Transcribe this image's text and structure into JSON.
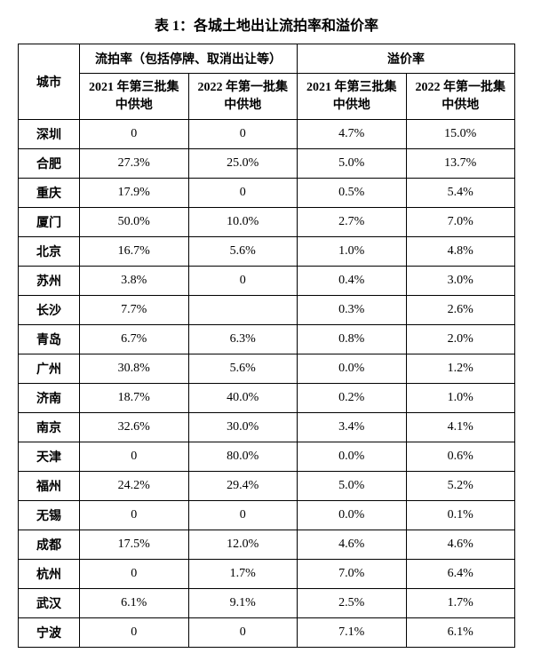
{
  "title": "表 1：各城土地出让流拍率和溢价率",
  "headers": {
    "city": "城市",
    "group1": "流拍率（包括停牌、取消出让等）",
    "group2": "溢价率",
    "sub1": "2021 年第三批集中供地",
    "sub2": "2022 年第一批集中供地",
    "sub3": "2021 年第三批集中供地",
    "sub4": "2022 年第一批集中供地"
  },
  "rows": [
    {
      "city": "深圳",
      "c1": "0",
      "c2": "0",
      "c3": "4.7%",
      "c4": "15.0%"
    },
    {
      "city": "合肥",
      "c1": "27.3%",
      "c2": "25.0%",
      "c3": "5.0%",
      "c4": "13.7%"
    },
    {
      "city": "重庆",
      "c1": "17.9%",
      "c2": "0",
      "c3": "0.5%",
      "c4": "5.4%"
    },
    {
      "city": "厦门",
      "c1": "50.0%",
      "c2": "10.0%",
      "c3": "2.7%",
      "c4": "7.0%"
    },
    {
      "city": "北京",
      "c1": "16.7%",
      "c2": "5.6%",
      "c3": "1.0%",
      "c4": "4.8%"
    },
    {
      "city": "苏州",
      "c1": "3.8%",
      "c2": "0",
      "c3": "0.4%",
      "c4": "3.0%"
    },
    {
      "city": "长沙",
      "c1": "7.7%",
      "c2": "",
      "c3": "0.3%",
      "c4": "2.6%"
    },
    {
      "city": "青岛",
      "c1": "6.7%",
      "c2": "6.3%",
      "c3": "0.8%",
      "c4": "2.0%"
    },
    {
      "city": "广州",
      "c1": "30.8%",
      "c2": "5.6%",
      "c3": "0.0%",
      "c4": "1.2%"
    },
    {
      "city": "济南",
      "c1": "18.7%",
      "c2": "40.0%",
      "c3": "0.2%",
      "c4": "1.0%"
    },
    {
      "city": "南京",
      "c1": "32.6%",
      "c2": "30.0%",
      "c3": "3.4%",
      "c4": "4.1%"
    },
    {
      "city": "天津",
      "c1": "0",
      "c2": "80.0%",
      "c3": "0.0%",
      "c4": "0.6%"
    },
    {
      "city": "福州",
      "c1": "24.2%",
      "c2": "29.4%",
      "c3": "5.0%",
      "c4": "5.2%"
    },
    {
      "city": "无锡",
      "c1": "0",
      "c2": "0",
      "c3": "0.0%",
      "c4": "0.1%"
    },
    {
      "city": "成都",
      "c1": "17.5%",
      "c2": "12.0%",
      "c3": "4.6%",
      "c4": "4.6%"
    },
    {
      "city": "杭州",
      "c1": "0",
      "c2": "1.7%",
      "c3": "7.0%",
      "c4": "6.4%"
    },
    {
      "city": "武汉",
      "c1": "6.1%",
      "c2": "9.1%",
      "c3": "2.5%",
      "c4": "1.7%"
    },
    {
      "city": "宁波",
      "c1": "0",
      "c2": "0",
      "c3": "7.1%",
      "c4": "6.1%"
    }
  ]
}
